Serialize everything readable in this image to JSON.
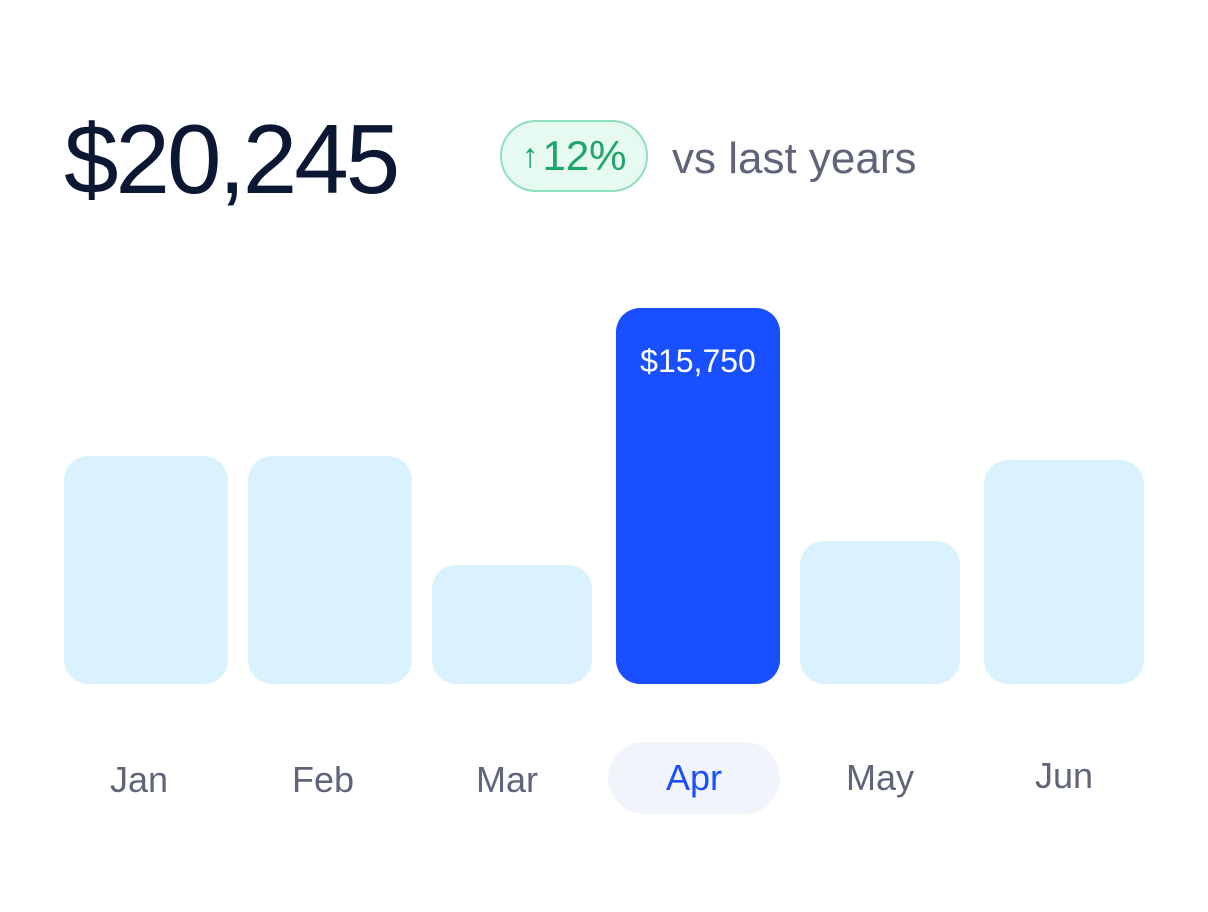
{
  "summary": {
    "total": "$20,245",
    "change": "12%",
    "change_icon": "arrow-up-icon",
    "comparison": "vs last years",
    "colors": {
      "change_text": "#1fa66a",
      "change_border": "#8fe0bd",
      "change_bg": "#e6faf1"
    }
  },
  "chart_data": {
    "type": "bar",
    "categories": [
      "Jan",
      "Feb",
      "Mar",
      "Apr",
      "May",
      "Jun"
    ],
    "values": [
      9550,
      9550,
      5000,
      15750,
      6000,
      9400
    ],
    "highlighted": "Apr",
    "value_labels": {
      "Apr": "$15,750"
    },
    "ylim": [
      0,
      15750
    ],
    "grid": false,
    "colors": {
      "bar": "#daf2fd",
      "highlight": "#1850ff",
      "tick_text": "#5f6478",
      "highlight_tick_text": "#1850ff",
      "highlight_tick_bg": "#f1f4fa"
    }
  }
}
